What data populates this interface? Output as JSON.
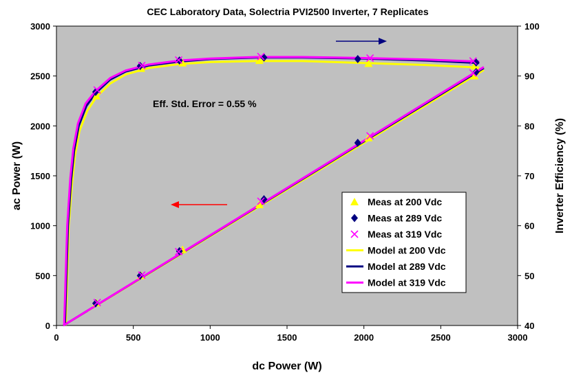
{
  "chart_data": {
    "type": "scatter",
    "title": "CEC Laboratory Data, Solectria PVI2500 Inverter, 7 Replicates",
    "xlabel": "dc Power (W)",
    "ylabel_left": "ac Power (W)",
    "ylabel_right": "Inverter Efficiency (%)",
    "xlim": [
      0,
      3000
    ],
    "ylim_left": [
      0,
      3000
    ],
    "ylim_right": [
      40,
      100
    ],
    "x_ticks": [
      "0",
      "500",
      "1000",
      "1500",
      "2000",
      "2500",
      "3000"
    ],
    "y_left_ticks": [
      "0",
      "500",
      "1000",
      "1500",
      "2000",
      "2500",
      "3000"
    ],
    "y_right_ticks": [
      "40",
      "50",
      "60",
      "70",
      "80",
      "90",
      "100"
    ],
    "grid": false,
    "legend_position": "lower-right",
    "annotation": "Eff. Std. Error = 0.55 %",
    "colors": {
      "plot_background": "#c0c0c0",
      "meas_200": "#ffff00",
      "meas_289": "#000080",
      "meas_319": "#ff00ff",
      "model_200": "#ffff00",
      "model_289": "#000080",
      "model_319": "#ff00ff",
      "right_arrow": "#000080",
      "left_arrow": "#ff0000"
    },
    "series": [
      {
        "name": "Meas at 200 Vdc",
        "kind": "measured",
        "axis": "both",
        "marker": "triangle",
        "ac_points": [
          [
            260,
            225
          ],
          [
            550,
            500
          ],
          [
            820,
            760
          ],
          [
            1320,
            1210
          ],
          [
            2030,
            1880
          ],
          [
            2720,
            2500
          ]
        ],
        "eff_points": [
          [
            260,
            86
          ],
          [
            550,
            91.5
          ],
          [
            820,
            92.6
          ],
          [
            1320,
            93.1
          ],
          [
            2030,
            92.5
          ],
          [
            2720,
            92
          ]
        ]
      },
      {
        "name": "Meas at 289 Vdc",
        "kind": "measured",
        "axis": "both",
        "marker": "diamond",
        "ac_points": [
          [
            255,
            222
          ],
          [
            545,
            500
          ],
          [
            800,
            745
          ],
          [
            1350,
            1265
          ],
          [
            1960,
            1830
          ],
          [
            2730,
            2540
          ]
        ],
        "eff_points": [
          [
            255,
            86.8
          ],
          [
            545,
            92.0
          ],
          [
            800,
            93.1
          ],
          [
            1350,
            93.7
          ],
          [
            1960,
            93.4
          ],
          [
            2730,
            92.7
          ]
        ]
      },
      {
        "name": "Meas at 319 Vdc",
        "kind": "measured",
        "axis": "both",
        "marker": "x",
        "ac_points": [
          [
            265,
            230
          ],
          [
            555,
            505
          ],
          [
            795,
            740
          ],
          [
            1330,
            1245
          ],
          [
            2040,
            1900
          ],
          [
            2710,
            2530
          ]
        ],
        "eff_points": [
          [
            265,
            87.2
          ],
          [
            555,
            92.1
          ],
          [
            795,
            93.2
          ],
          [
            1330,
            93.9
          ],
          [
            2040,
            93.6
          ],
          [
            2710,
            93.0
          ]
        ]
      },
      {
        "name": "Model at 200 Vdc",
        "kind": "model",
        "axis": "both",
        "ac_line": [
          [
            45,
            0
          ],
          [
            2780,
            2560
          ]
        ],
        "eff_line": [
          [
            60,
            40
          ],
          [
            80,
            60
          ],
          [
            100,
            68
          ],
          [
            120,
            74
          ],
          [
            150,
            79
          ],
          [
            200,
            83
          ],
          [
            260,
            85.8
          ],
          [
            350,
            88.5
          ],
          [
            450,
            90.3
          ],
          [
            600,
            91.6
          ],
          [
            800,
            92.4
          ],
          [
            1000,
            92.8
          ],
          [
            1300,
            93.0
          ],
          [
            1600,
            93.0
          ],
          [
            2000,
            92.6
          ],
          [
            2400,
            92.2
          ],
          [
            2750,
            91.7
          ]
        ]
      },
      {
        "name": "Model at 289 Vdc",
        "kind": "model",
        "axis": "both",
        "ac_line": [
          [
            45,
            0
          ],
          [
            2780,
            2580
          ]
        ],
        "eff_line": [
          [
            55,
            40
          ],
          [
            75,
            60
          ],
          [
            95,
            69
          ],
          [
            115,
            75
          ],
          [
            145,
            80
          ],
          [
            195,
            84
          ],
          [
            255,
            86.6
          ],
          [
            350,
            89.3
          ],
          [
            450,
            90.9
          ],
          [
            600,
            92.1
          ],
          [
            800,
            92.9
          ],
          [
            1000,
            93.4
          ],
          [
            1300,
            93.7
          ],
          [
            1600,
            93.7
          ],
          [
            2000,
            93.5
          ],
          [
            2400,
            93.1
          ],
          [
            2750,
            92.6
          ]
        ]
      },
      {
        "name": "Model at 319 Vdc",
        "kind": "model",
        "axis": "both",
        "ac_line": [
          [
            45,
            0
          ],
          [
            2780,
            2590
          ]
        ],
        "eff_line": [
          [
            50,
            40
          ],
          [
            70,
            60
          ],
          [
            90,
            69.5
          ],
          [
            110,
            75.5
          ],
          [
            140,
            80.5
          ],
          [
            190,
            84.5
          ],
          [
            255,
            87.0
          ],
          [
            350,
            89.6
          ],
          [
            450,
            91.1
          ],
          [
            600,
            92.3
          ],
          [
            800,
            93.1
          ],
          [
            1000,
            93.5
          ],
          [
            1300,
            93.8
          ],
          [
            1600,
            93.8
          ],
          [
            2000,
            93.6
          ],
          [
            2400,
            93.3
          ],
          [
            2750,
            92.9
          ]
        ]
      }
    ]
  }
}
